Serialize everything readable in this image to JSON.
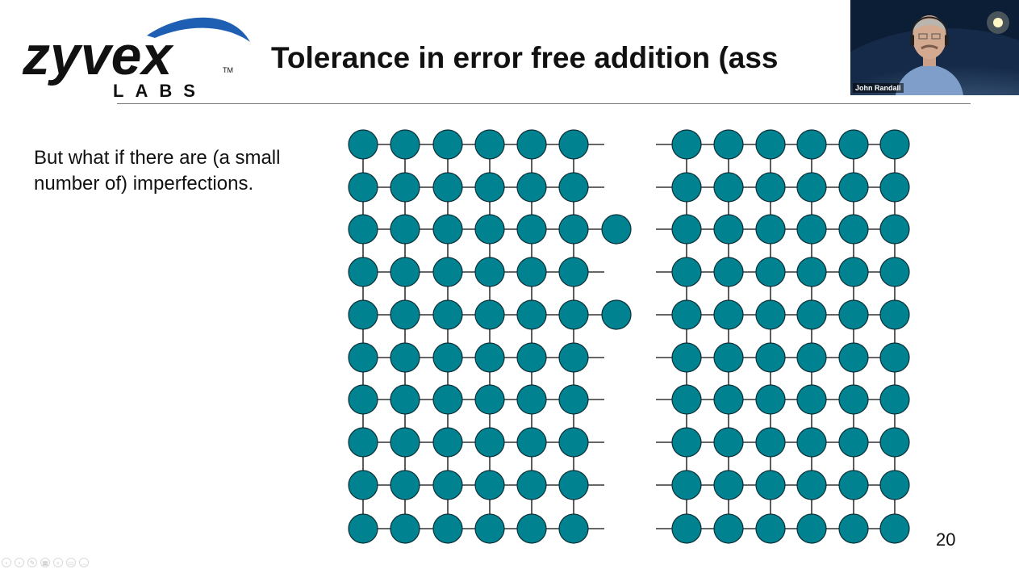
{
  "logo": {
    "word": "zyvex",
    "sub": "LABS",
    "tm": "TM",
    "swoosh_color": "#1e5fb4"
  },
  "slide": {
    "title": "Tolerance in error free addition (ass",
    "body_text": "But what if there are (a small number of) imperfections.",
    "page_number": "20"
  },
  "lattice": {
    "atom_color": "#008291",
    "atom_stroke": "#0b2f37",
    "bond_color": "#333333",
    "left_block": {
      "rows": 10,
      "cols": 6
    },
    "right_block": {
      "rows": 10,
      "cols": 6
    },
    "extra_atom_rows": [
      3,
      5
    ]
  },
  "webcam": {
    "presenter_name": "John Randall"
  },
  "controls": [
    "prev-icon",
    "next-icon",
    "pen-icon",
    "slides-icon",
    "zoom-icon",
    "options-icon",
    "more-icon"
  ]
}
